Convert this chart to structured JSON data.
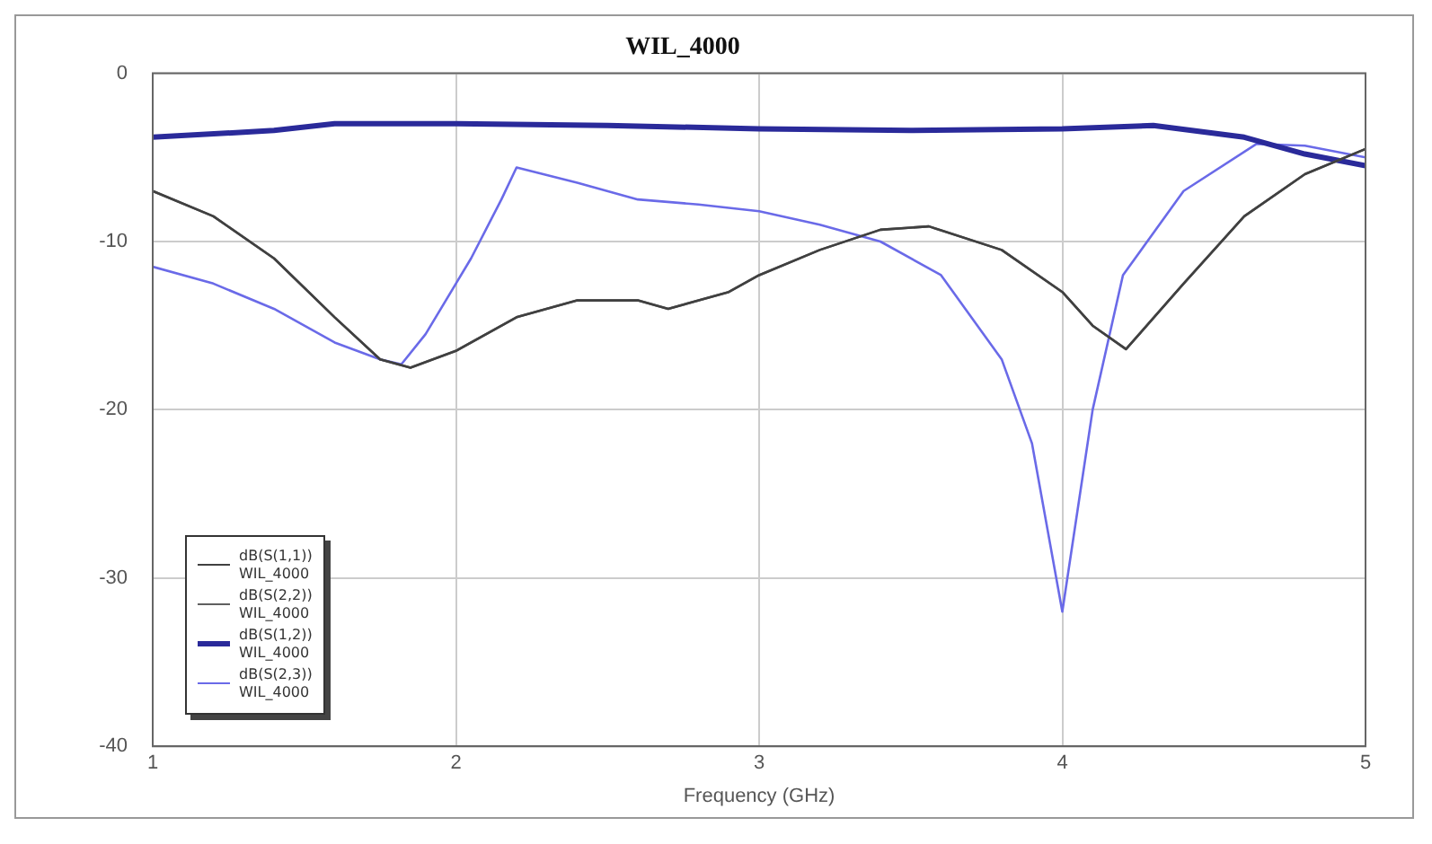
{
  "chart_data": {
    "type": "line",
    "title": "WIL_4000",
    "xlabel": "Frequency (GHz)",
    "xlim": [
      1,
      5
    ],
    "xticks": [
      1,
      2,
      3,
      4,
      5
    ],
    "ylim": [
      -40,
      0
    ],
    "yticks": [
      0,
      -10,
      -20,
      -30,
      -40
    ],
    "grid": true,
    "legend": "bottom left",
    "marker": "none",
    "line_style": "solid",
    "series": [
      {
        "name": "dB(S(1,1)) WIL_4000",
        "color": "#404040",
        "x": [
          1,
          1.2,
          1.4,
          1.6,
          1.75,
          1.85,
          2,
          2.2,
          2.4,
          2.6,
          2.7,
          2.9,
          3,
          3.2,
          3.4,
          3.56,
          3.8,
          4,
          4.1,
          4.21,
          4.4,
          4.6,
          4.8,
          5
        ],
        "values": [
          -7,
          -8.5,
          -11,
          -14.5,
          -17,
          -17.5,
          -16.5,
          -14.5,
          -13.5,
          -13.5,
          -14,
          -13,
          -12,
          -10.5,
          -9.3,
          -9.1,
          -10.5,
          -13,
          -15,
          -16.4,
          -12.5,
          -8.5,
          -6,
          -4.5
        ]
      },
      {
        "name": "dB(S(2,2)) WIL_4000",
        "color": "#606060",
        "x": [
          1,
          1.2,
          1.4,
          1.6,
          1.75,
          1.85,
          2,
          2.2,
          2.4,
          2.6,
          2.7,
          2.9,
          3,
          3.2,
          3.4,
          3.56,
          3.8,
          4,
          4.1,
          4.21,
          4.4,
          4.6,
          4.8,
          5
        ],
        "values": [
          -7,
          -8.5,
          -11,
          -14.5,
          -17,
          -17.5,
          -16.5,
          -14.5,
          -13.5,
          -13.5,
          -14,
          -13,
          -12,
          -10.5,
          -9.3,
          -9.1,
          -10.5,
          -13,
          -15,
          -16.4,
          -12.5,
          -8.5,
          -6,
          -4.5
        ]
      },
      {
        "name": "dB(S(1,2)) WIL_4000",
        "color": "#2a2a9a",
        "x": [
          1,
          1.4,
          1.6,
          2,
          2.5,
          3,
          3.5,
          4,
          4.3,
          4.6,
          4.8,
          5
        ],
        "values": [
          -3.8,
          -3.4,
          -3,
          -3,
          -3.1,
          -3.3,
          -3.4,
          -3.3,
          -3.1,
          -3.8,
          -4.8,
          -5.5
        ]
      },
      {
        "name": "dB(S(2,3)) WIL_4000",
        "color": "#6a6ae8",
        "x": [
          1,
          1.2,
          1.4,
          1.6,
          1.75,
          1.82,
          1.9,
          2.05,
          2.15,
          2.2,
          2.4,
          2.6,
          2.8,
          3,
          3.2,
          3.4,
          3.6,
          3.8,
          3.9,
          4,
          4.1,
          4.2,
          4.4,
          4.64,
          4.8,
          5
        ],
        "values": [
          -11.5,
          -12.5,
          -14,
          -16,
          -17,
          -17.3,
          -15.5,
          -11,
          -7.5,
          -5.6,
          -6.5,
          -7.5,
          -7.8,
          -8.2,
          -9,
          -10,
          -12,
          -17,
          -22,
          -32,
          -20,
          -12,
          -7,
          -4.2,
          -4.3,
          -5
        ]
      }
    ]
  }
}
